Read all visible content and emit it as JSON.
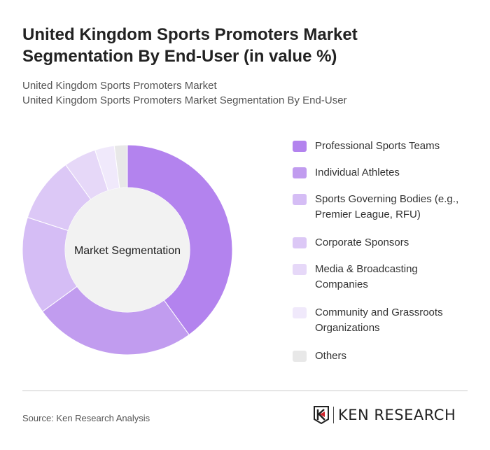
{
  "title": "United Kingdom Sports Promoters Market Segmentation By End-User (in value %)",
  "subtitle1": "United Kingdom Sports Promoters Market",
  "subtitle2": "United Kingdom Sports Promoters Market Segmentation By End-User",
  "source": "Source: Ken Research Analysis",
  "logo_text": "KEN RESEARCH",
  "chart_data": {
    "type": "pie",
    "donut": true,
    "center_label": "Market Segmentation",
    "legend_position": "right",
    "categories": [
      "Professional Sports Teams",
      "Individual Athletes",
      "Sports Governing Bodies (e.g., Premier League, RFU)",
      "Corporate Sponsors",
      "Media & Broadcasting Companies",
      "Community and Grassroots Organizations",
      "Others"
    ],
    "values": [
      40,
      25,
      15,
      10,
      5,
      3,
      2
    ],
    "colors": [
      "#b383ee",
      "#c19cef",
      "#d5bdf5",
      "#dcc8f6",
      "#e6d8f8",
      "#f0e9fb",
      "#e8e8e8"
    ]
  }
}
